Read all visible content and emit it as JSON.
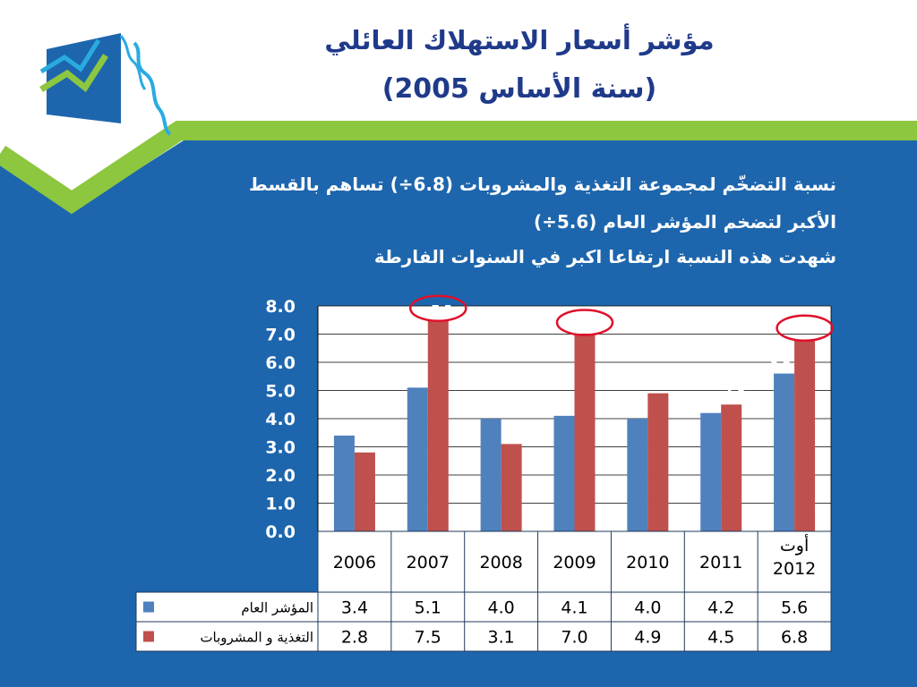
{
  "slide": {
    "title_line_1": "مؤشر أسعار الاستهلاك العائلي",
    "title_line_2": "(سنة الأساس 2005)",
    "description_1": "نسبة التضخّم لمجموعة التغذية والمشروبات (6.8÷) تساهم بالقسط",
    "description_2": "الأكبر لتضخم المؤشر العام (5.6÷)",
    "description_3": "شهدت هذه النسبة ارتفاعا اكبر في السنوات الفارطة",
    "colors": {
      "background_blue": "#1d66ad",
      "accent_green": "#8dc63f",
      "title_blue": "#1f3a8a",
      "series_blue": "#4f81bd",
      "series_red": "#c0504d",
      "highlight_circle": "#e0102a"
    }
  },
  "chart_data": {
    "type": "bar",
    "title": "",
    "xlabel": "",
    "ylabel": "",
    "ylim": [
      0,
      8
    ],
    "yticks": [
      "0.0",
      "1.0",
      "2.0",
      "3.0",
      "4.0",
      "5.0",
      "6.0",
      "7.0",
      "8.0"
    ],
    "grid": true,
    "categories": [
      "2006",
      "2007",
      "2008",
      "2009",
      "2010",
      "2011",
      "أوت 2012"
    ],
    "category_lines": [
      [
        "2006"
      ],
      [
        "2007"
      ],
      [
        "2008"
      ],
      [
        "2009"
      ],
      [
        "2010"
      ],
      [
        "2011"
      ],
      [
        "أوت",
        "2012"
      ]
    ],
    "series": [
      {
        "name": "المؤشر العام",
        "color": "#4f81bd",
        "values": [
          3.4,
          5.1,
          4.0,
          4.1,
          4.0,
          4.2,
          5.6
        ],
        "labels": [
          "3.4",
          "5.1",
          "4.0",
          "4.1",
          "4.0",
          "4.2",
          "5.6"
        ]
      },
      {
        "name": "التغذية و المشروبات",
        "color": "#c0504d",
        "values": [
          2.8,
          7.5,
          3.1,
          7.0,
          4.9,
          4.5,
          6.8
        ],
        "labels": [
          "2.8",
          "7.5",
          "3.1",
          "7.0",
          "4.9",
          "4.5",
          "6.8"
        ]
      }
    ],
    "highlighted": [
      {
        "series": 1,
        "category": 1
      },
      {
        "series": 1,
        "category": 3
      },
      {
        "series": 1,
        "category": 6
      }
    ],
    "legend": "data-table-left"
  }
}
